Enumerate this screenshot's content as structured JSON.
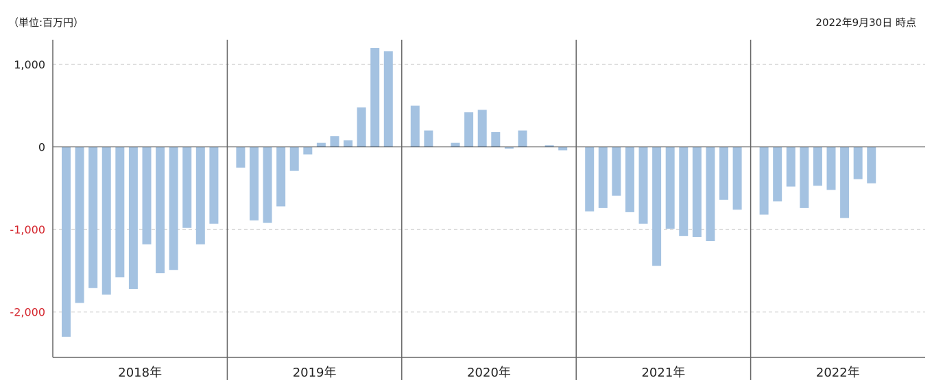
{
  "header": {
    "unit_label": "（単位:百万円）",
    "as_of_label": "2022年9月30日 時点"
  },
  "colors": {
    "bar": "#a4c2e1",
    "negative_tick": "#d4232b",
    "positive_tick": "#222222",
    "grid": "#c8c8c8",
    "divider": "#666666"
  },
  "chart_data": {
    "type": "bar",
    "ylim": [
      -2550,
      1300
    ],
    "yticks": [
      1000,
      0,
      -1000,
      -2000
    ],
    "ytick_labels": [
      "1,000",
      "0",
      "-1,000",
      "-2,000"
    ],
    "grid": true,
    "groups": [
      {
        "label": "2018年",
        "values": [
          -2300,
          -1890,
          -1710,
          -1790,
          -1580,
          -1720,
          -1180,
          -1530,
          -1490,
          -980,
          -1180,
          -930
        ]
      },
      {
        "label": "2019年",
        "values": [
          -250,
          -890,
          -920,
          -720,
          -290,
          -90,
          50,
          130,
          80,
          480,
          1200,
          1160
        ]
      },
      {
        "label": "2020年",
        "values": [
          500,
          200,
          0,
          50,
          420,
          450,
          180,
          -20,
          200,
          0,
          20,
          -40
        ]
      },
      {
        "label": "2021年",
        "values": [
          -780,
          -740,
          -590,
          -790,
          -930,
          -1440,
          -990,
          -1080,
          -1090,
          -1140,
          -640,
          -760
        ]
      },
      {
        "label": "2022年",
        "values": [
          -820,
          -660,
          -480,
          -740,
          -470,
          -520,
          -860,
          -390,
          -440
        ]
      }
    ]
  }
}
